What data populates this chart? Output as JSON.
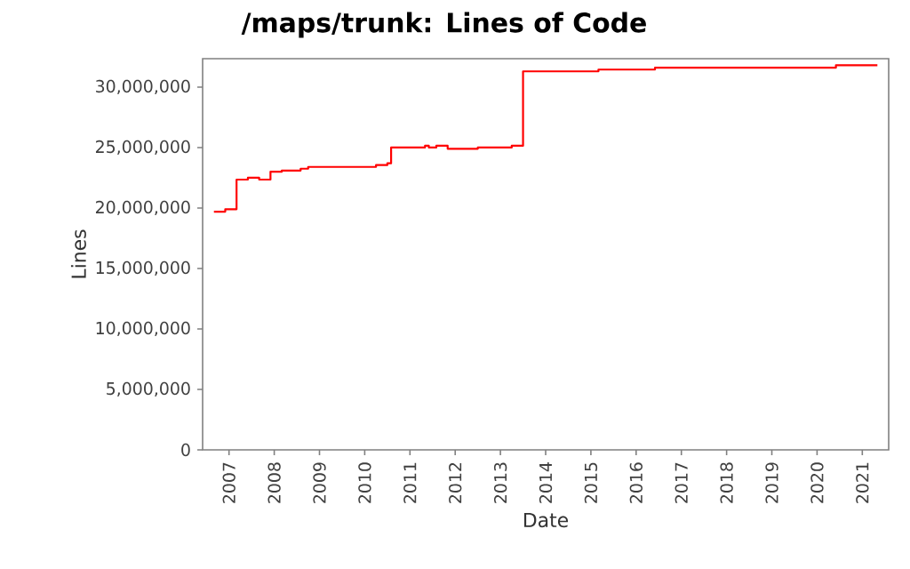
{
  "chart_data": {
    "type": "step",
    "title": "/maps/trunk: Lines of Code",
    "xlabel": "Date",
    "ylabel": "Lines",
    "x": [
      "2006-09",
      "2006-12",
      "2007-03",
      "2007-06",
      "2007-09",
      "2007-12",
      "2008-03",
      "2008-08",
      "2008-10",
      "2010-04",
      "2010-07",
      "2010-08",
      "2011-05",
      "2011-06",
      "2011-08",
      "2011-11",
      "2012-07",
      "2013-04",
      "2013-07",
      "2015-03",
      "2016-06",
      "2020-06",
      "2021-05"
    ],
    "series": [
      {
        "color": "#ff0000",
        "values": [
          19700000,
          19900000,
          22350000,
          22500000,
          22350000,
          23000000,
          23100000,
          23250000,
          23400000,
          23550000,
          23700000,
          25000000,
          25150000,
          25000000,
          25150000,
          24900000,
          25000000,
          25150000,
          31300000,
          31450000,
          31600000,
          31800000,
          31800000
        ]
      }
    ],
    "xlim": [
      "2006-06",
      "2021-08"
    ],
    "ylim": [
      0,
      32350000
    ],
    "xticks": [
      "2007",
      "2008",
      "2009",
      "2010",
      "2011",
      "2012",
      "2013",
      "2014",
      "2015",
      "2016",
      "2017",
      "2018",
      "2019",
      "2020",
      "2021"
    ],
    "yticks": [
      {
        "value": 0,
        "label": "0"
      },
      {
        "value": 5000000,
        "label": "5,000,000"
      },
      {
        "value": 10000000,
        "label": "10,000,000"
      },
      {
        "value": 15000000,
        "label": "15,000,000"
      },
      {
        "value": 20000000,
        "label": "20,000,000"
      },
      {
        "value": 25000000,
        "label": "25,000,000"
      },
      {
        "value": 30000000,
        "label": "30,000,000"
      }
    ]
  }
}
